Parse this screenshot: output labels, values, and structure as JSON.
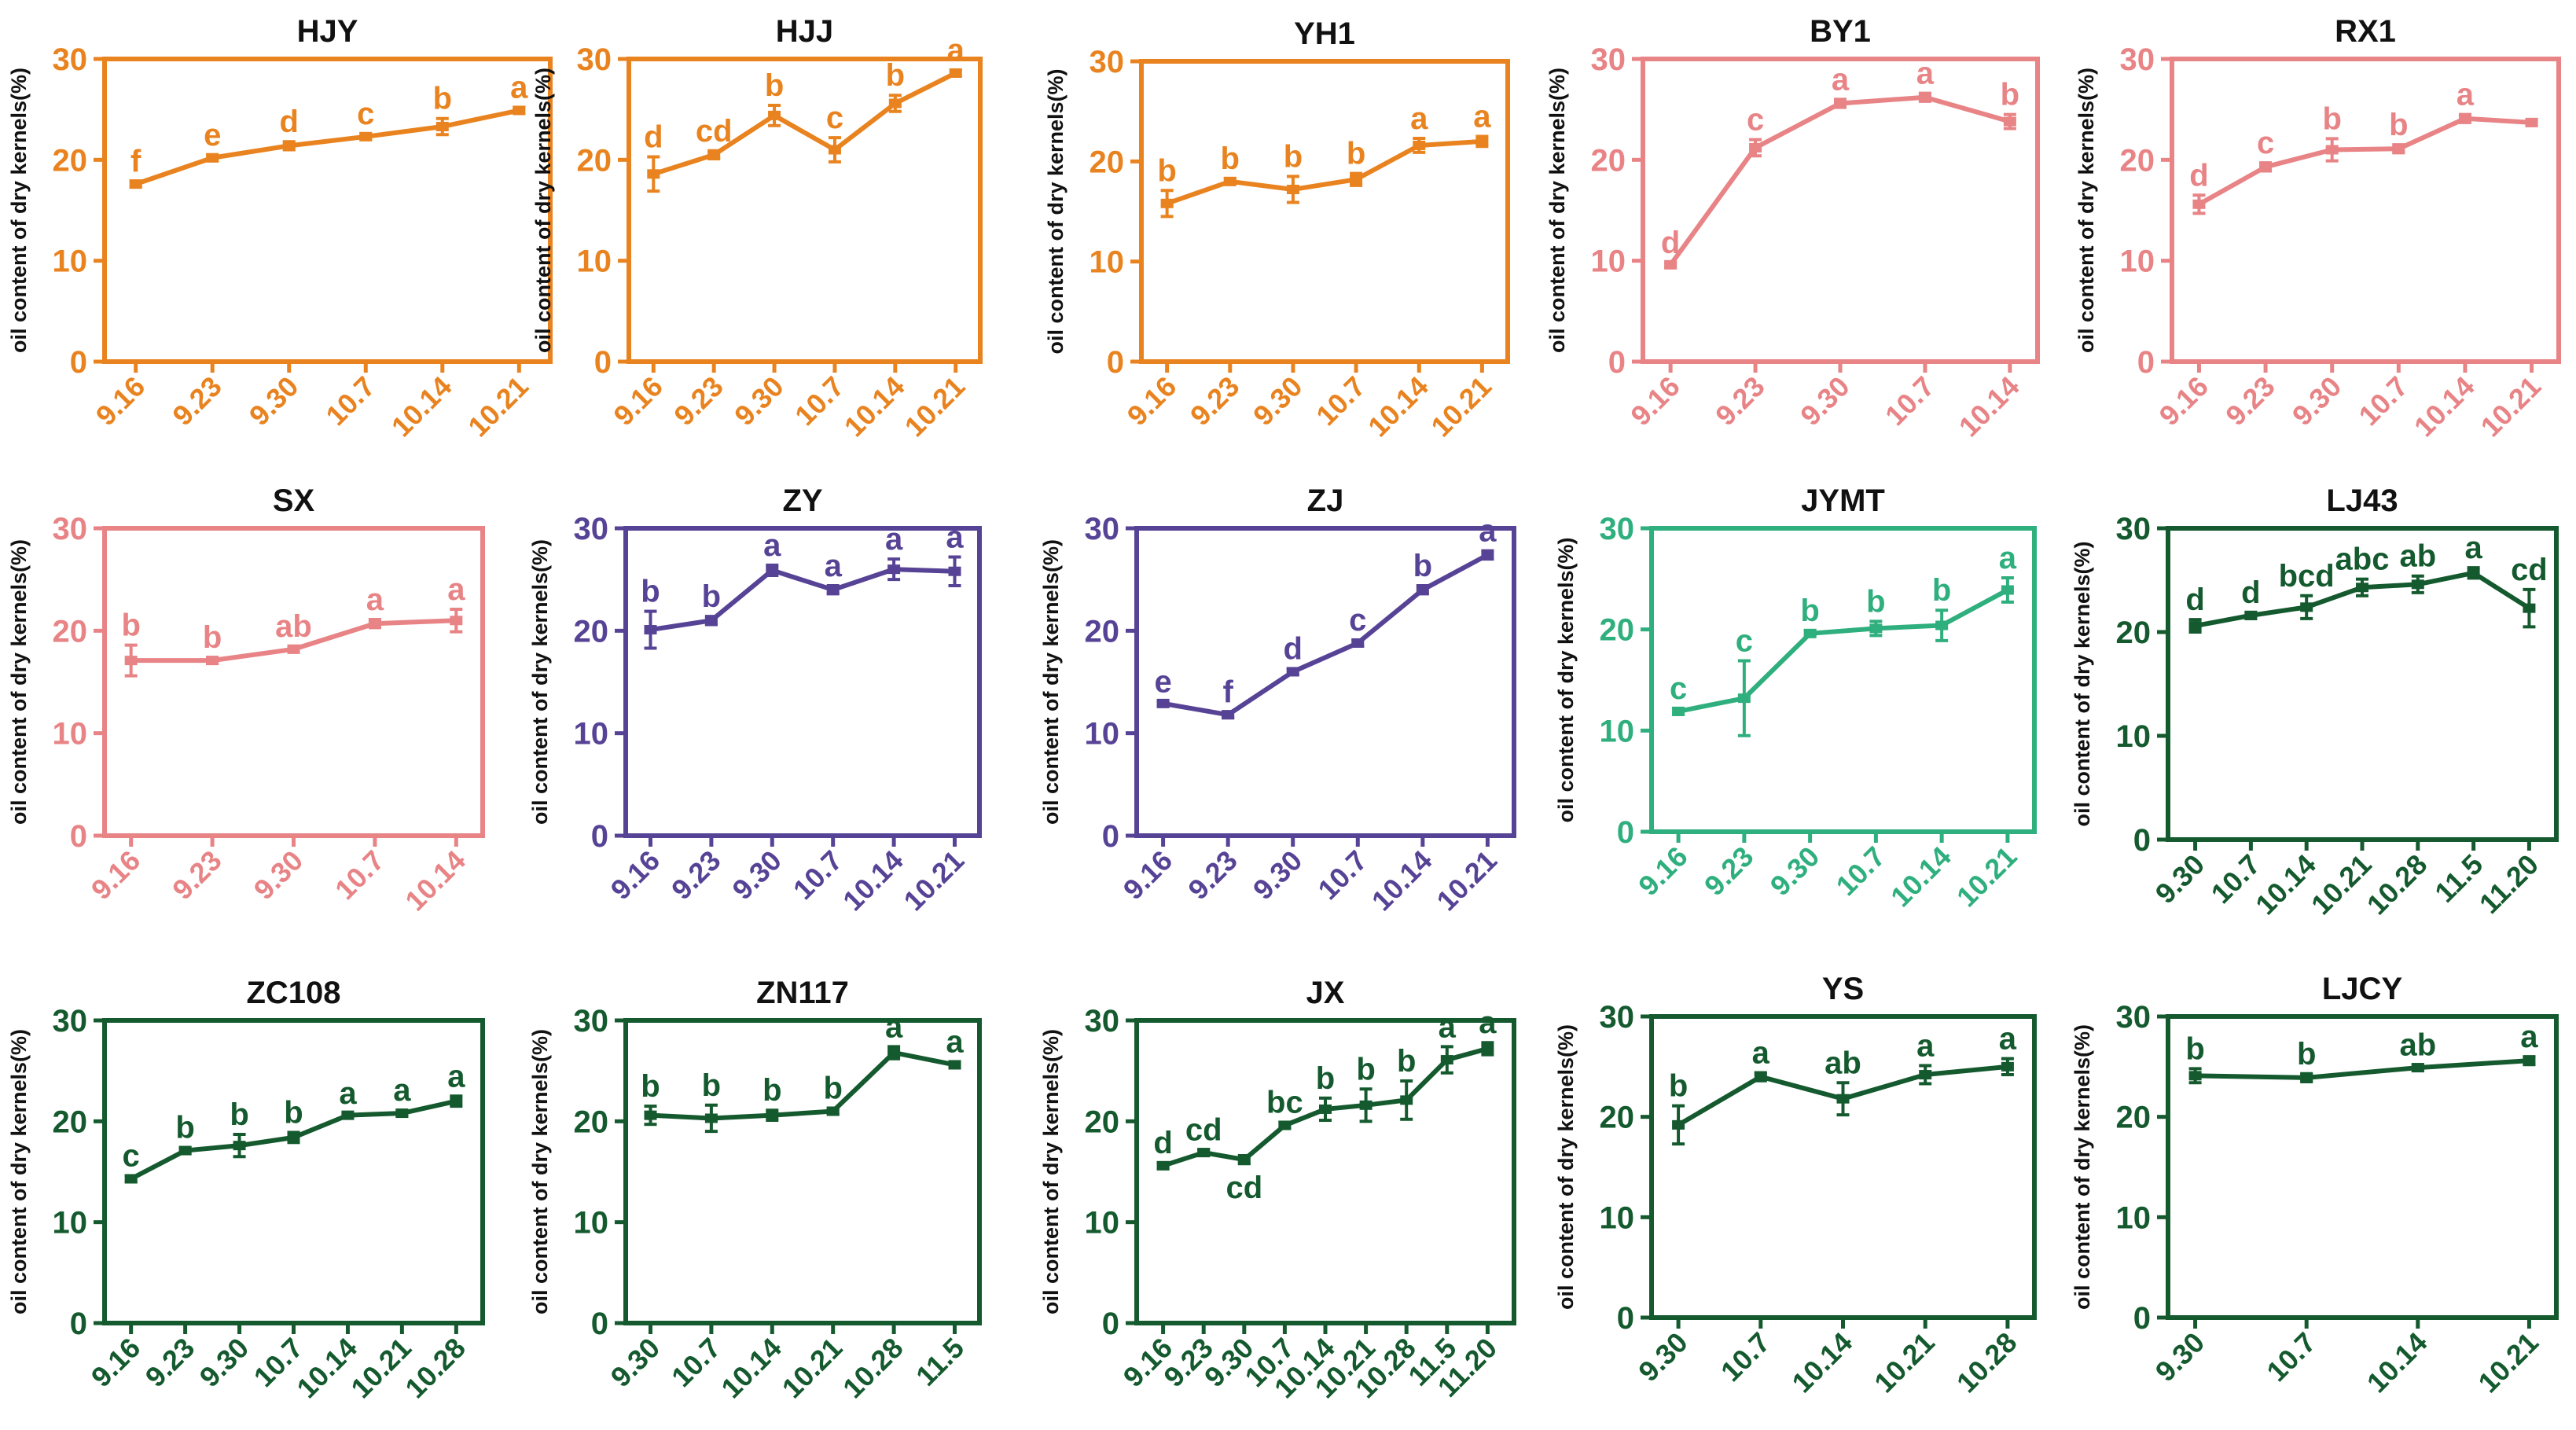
{
  "figure_caption": "",
  "chart_data": [
    {
      "type": "line",
      "title": "HJY",
      "color": "#E9831F",
      "ylabel": "oil content of dry kernels(%)",
      "ylim": [
        0,
        30
      ],
      "yticks": [
        0,
        10,
        20,
        30
      ],
      "categories": [
        "9.16",
        "9.23",
        "9.30",
        "10.7",
        "10.14",
        "10.21"
      ],
      "values": [
        17.6,
        20.2,
        21.4,
        22.3,
        23.3,
        24.9
      ],
      "errors": [
        0.3,
        0.3,
        0.4,
        0.3,
        0.8,
        0.3
      ],
      "letters": [
        "f",
        "e",
        "d",
        "c",
        "b",
        "a"
      ]
    },
    {
      "type": "line",
      "title": "HJJ",
      "color": "#E9831F",
      "ylabel": "oil content of dry kernels(%)",
      "ylim": [
        0,
        30
      ],
      "yticks": [
        0,
        10,
        20,
        30
      ],
      "categories": [
        "9.16",
        "9.23",
        "9.30",
        "10.7",
        "10.14",
        "10.21"
      ],
      "values": [
        18.6,
        20.5,
        24.4,
        21.0,
        25.6,
        28.6
      ],
      "errors": [
        1.7,
        0.4,
        1.0,
        1.2,
        0.8,
        0.3
      ],
      "letters": [
        "d",
        "cd",
        "b",
        "c",
        "b",
        "a"
      ]
    },
    {
      "type": "line",
      "title": "YH1",
      "color": "#E9831F",
      "ylabel": "oil content of dry kernels(%)",
      "ylim": [
        0,
        30
      ],
      "yticks": [
        0,
        10,
        20,
        30
      ],
      "categories": [
        "9.16",
        "9.23",
        "9.30",
        "10.7",
        "10.14",
        "10.21"
      ],
      "values": [
        15.8,
        18.0,
        17.2,
        18.2,
        21.6,
        22.0
      ],
      "errors": [
        1.3,
        0.3,
        1.3,
        0.6,
        0.7,
        0.5
      ],
      "letters": [
        "b",
        "b",
        "b",
        "b",
        "a",
        "a"
      ]
    },
    {
      "type": "line",
      "title": "BY1",
      "color": "#E88386",
      "ylabel": "oil content of dry kernels(%)",
      "ylim": [
        0,
        30
      ],
      "yticks": [
        0,
        10,
        20,
        30
      ],
      "categories": [
        "9.16",
        "9.23",
        "9.30",
        "10.7",
        "10.14"
      ],
      "values": [
        9.6,
        21.2,
        25.6,
        26.2,
        23.8
      ],
      "errors": [
        0.2,
        0.8,
        0.4,
        0.4,
        0.7
      ],
      "letters": [
        "d",
        "c",
        "a",
        "a",
        "b"
      ]
    },
    {
      "type": "line",
      "title": "RX1",
      "color": "#E88386",
      "ylabel": "oil content of dry kernels(%)",
      "ylim": [
        0,
        30
      ],
      "yticks": [
        0,
        10,
        20,
        30
      ],
      "categories": [
        "9.16",
        "9.23",
        "9.30",
        "10.7",
        "10.14",
        "10.21"
      ],
      "values": [
        15.6,
        19.3,
        21.0,
        21.1,
        24.1,
        23.7
      ],
      "errors": [
        0.9,
        0.4,
        1.1,
        0.4,
        0.4,
        0.3
      ],
      "letters": [
        "d",
        "c",
        "b",
        "b",
        "a",
        ""
      ]
    },
    {
      "type": "line",
      "title": "SX",
      "color": "#E88386",
      "ylabel": "oil content of dry kernels(%)",
      "ylim": [
        0,
        30
      ],
      "yticks": [
        0,
        10,
        20,
        30
      ],
      "categories": [
        "9.16",
        "9.23",
        "9.30",
        "10.7",
        "10.14"
      ],
      "values": [
        17.1,
        17.1,
        18.2,
        20.7,
        21.0
      ],
      "errors": [
        1.5,
        0.3,
        0.3,
        0.4,
        1.1
      ],
      "letters": [
        "b",
        "b",
        "ab",
        "a",
        "a"
      ]
    },
    {
      "type": "line",
      "title": "ZY",
      "color": "#574396",
      "ylabel": "oil content of dry kernels(%)",
      "ylim": [
        0,
        30
      ],
      "yticks": [
        0,
        10,
        20,
        30
      ],
      "categories": [
        "9.16",
        "9.23",
        "9.30",
        "10.7",
        "10.14",
        "10.21"
      ],
      "values": [
        20.1,
        21.0,
        25.9,
        24.0,
        26.0,
        25.8
      ],
      "errors": [
        1.8,
        0.4,
        0.5,
        0.4,
        1.0,
        1.4
      ],
      "letters": [
        "b",
        "b",
        "a",
        "a",
        "a",
        "a"
      ]
    },
    {
      "type": "line",
      "title": "ZJ",
      "color": "#574396",
      "ylabel": "oil content of dry kernels(%)",
      "ylim": [
        0,
        30
      ],
      "yticks": [
        0,
        10,
        20,
        30
      ],
      "categories": [
        "9.16",
        "9.23",
        "9.30",
        "10.7",
        "10.14",
        "10.21"
      ],
      "values": [
        12.9,
        11.8,
        16.0,
        18.8,
        24.0,
        27.4
      ],
      "errors": [
        0.2,
        0.3,
        0.3,
        0.3,
        0.4,
        0.4
      ],
      "letters": [
        "e",
        "f",
        "d",
        "c",
        "b",
        "a"
      ]
    },
    {
      "type": "line",
      "title": "JYMT",
      "color": "#2FAF7E",
      "ylabel": "oil content of dry kernels(%)",
      "ylim": [
        0,
        30
      ],
      "yticks": [
        0,
        10,
        20,
        30
      ],
      "categories": [
        "9.16",
        "9.23",
        "9.30",
        "10.7",
        "10.14",
        "10.21"
      ],
      "values": [
        11.9,
        13.2,
        19.6,
        20.1,
        20.4,
        23.9
      ],
      "errors": [
        0.3,
        3.7,
        0.3,
        0.7,
        1.5,
        1.2
      ],
      "letters": [
        "c",
        "c",
        "b",
        "b",
        "b",
        "a"
      ]
    },
    {
      "type": "line",
      "title": "LJ43",
      "color": "#145A2E",
      "ylabel": "oil content of dry kernels(%)",
      "ylim": [
        0,
        30
      ],
      "yticks": [
        0,
        10,
        20,
        30
      ],
      "categories": [
        "9.30",
        "10.7",
        "10.14",
        "10.21",
        "10.28",
        "11.5",
        "11.20"
      ],
      "values": [
        20.6,
        21.6,
        22.4,
        24.3,
        24.6,
        25.7,
        22.3
      ],
      "errors": [
        0.6,
        0.3,
        1.1,
        0.8,
        0.8,
        0.5,
        1.8
      ],
      "letters": [
        "d",
        "d",
        "bcd",
        "abc",
        "ab",
        "a",
        "cd"
      ]
    },
    {
      "type": "line",
      "title": "ZC108",
      "color": "#145A2E",
      "ylabel": "oil content of dry kernels(%)",
      "ylim": [
        0,
        30
      ],
      "yticks": [
        0,
        10,
        20,
        30
      ],
      "categories": [
        "9.16",
        "9.23",
        "9.30",
        "10.7",
        "10.14",
        "10.21",
        "10.28"
      ],
      "values": [
        14.3,
        17.1,
        17.6,
        18.4,
        20.6,
        20.8,
        22.0
      ],
      "errors": [
        0.3,
        0.3,
        1.1,
        0.5,
        0.2,
        0.3,
        0.5
      ],
      "letters": [
        "c",
        "b",
        "b",
        "b",
        "a",
        "a",
        "a"
      ]
    },
    {
      "type": "line",
      "title": "ZN117",
      "color": "#145A2E",
      "ylabel": "oil content of dry kernels(%)",
      "ylim": [
        0,
        30
      ],
      "yticks": [
        0,
        10,
        20,
        30
      ],
      "categories": [
        "9.30",
        "10.7",
        "10.14",
        "10.21",
        "10.28",
        "11.5"
      ],
      "values": [
        20.6,
        20.3,
        20.6,
        21.0,
        26.8,
        25.6
      ],
      "errors": [
        0.9,
        1.3,
        0.5,
        0.3,
        0.6,
        0.3
      ],
      "letters": [
        "b",
        "b",
        "b",
        "b",
        "a",
        "a"
      ]
    },
    {
      "type": "line",
      "title": "JX",
      "color": "#145A2E",
      "ylabel": "oil content of dry kernels(%)",
      "ylim": [
        0,
        30
      ],
      "yticks": [
        0,
        10,
        20,
        30
      ],
      "categories": [
        "9.16",
        "9.23",
        "9.30",
        "10.7",
        "10.14",
        "10.21",
        "10.28",
        "11.5",
        "11.20"
      ],
      "values": [
        15.6,
        16.9,
        16.2,
        19.6,
        21.2,
        21.6,
        22.1,
        26.1,
        27.2
      ],
      "errors": [
        0.3,
        0.3,
        0.4,
        0.3,
        1.1,
        1.6,
        1.9,
        1.3,
        0.6
      ],
      "letters": [
        "d",
        "cd",
        "cd",
        "bc",
        "b",
        "b",
        "b",
        "a",
        "a"
      ],
      "letter_below": [
        false,
        false,
        true,
        false,
        false,
        false,
        false,
        false,
        false
      ]
    },
    {
      "type": "line",
      "title": "YS",
      "color": "#145A2E",
      "ylabel": "oil content of dry kernels(%)",
      "ylim": [
        0,
        30
      ],
      "yticks": [
        0,
        10,
        20,
        30
      ],
      "categories": [
        "9.30",
        "10.7",
        "10.14",
        "10.21",
        "10.28"
      ],
      "values": [
        19.2,
        24.0,
        21.8,
        24.2,
        25.0
      ],
      "errors": [
        1.9,
        0.4,
        1.6,
        0.9,
        0.8
      ],
      "letters": [
        "b",
        "a",
        "ab",
        "a",
        "a"
      ]
    },
    {
      "type": "line",
      "title": "LJCY",
      "color": "#145A2E",
      "ylabel": "oil content of dry kernels(%)",
      "ylim": [
        0,
        30
      ],
      "yticks": [
        0,
        10,
        20,
        30
      ],
      "categories": [
        "9.30",
        "10.7",
        "10.14",
        "10.21"
      ],
      "values": [
        24.1,
        23.9,
        24.9,
        25.6
      ],
      "errors": [
        0.7,
        0.4,
        0.3,
        0.4
      ],
      "letters": [
        "b",
        "b",
        "ab",
        "a"
      ]
    }
  ]
}
